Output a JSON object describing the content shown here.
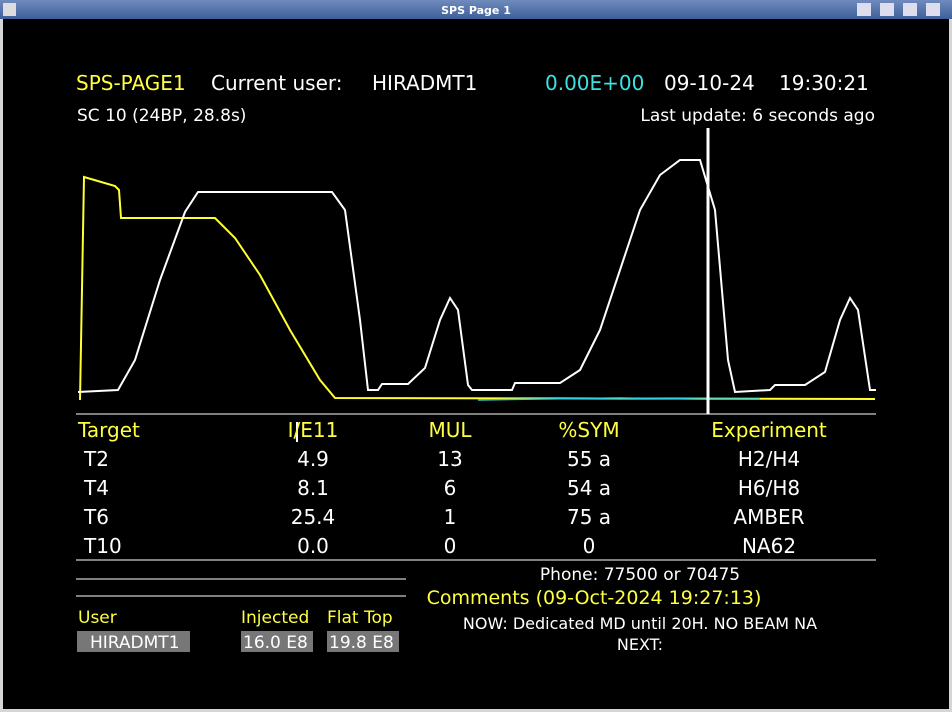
{
  "window": {
    "title": "SPS Page 1"
  },
  "header": {
    "title": "SPS-PAGE1",
    "user_label": "Current user:",
    "user": "HIRADMT1",
    "intensity": "0.00E+00",
    "date": "09-10-24",
    "time": "19:30:21",
    "cycle": "SC 10 (24BP, 28.8s)",
    "last_update": "Last update: 6 seconds ago"
  },
  "table": {
    "columns": [
      "Target",
      "I/E11",
      "MUL",
      "%SYM",
      "Experiment"
    ],
    "rows": [
      [
        "T2",
        "4.9",
        "13",
        "55 a",
        "H2/H4"
      ],
      [
        "T4",
        "8.1",
        "6",
        "54 a",
        "H6/H8"
      ],
      [
        "T6",
        "25.4",
        "1",
        "75 a",
        "AMBER"
      ],
      [
        "T10",
        "0.0",
        "0",
        "0",
        "NA62"
      ]
    ]
  },
  "user_panel": {
    "labels": [
      "User",
      "Injected",
      "Flat Top"
    ],
    "values": [
      "HIRADMT1",
      "16.0 E8",
      "19.8 E8"
    ]
  },
  "info": {
    "phone": "Phone: 77500 or 70475",
    "comments_title": "Comments (09-Oct-2024 19:27:13)",
    "now": "NOW: Dedicated MD until 20H. NO BEAM NA",
    "next": "NEXT:"
  }
}
